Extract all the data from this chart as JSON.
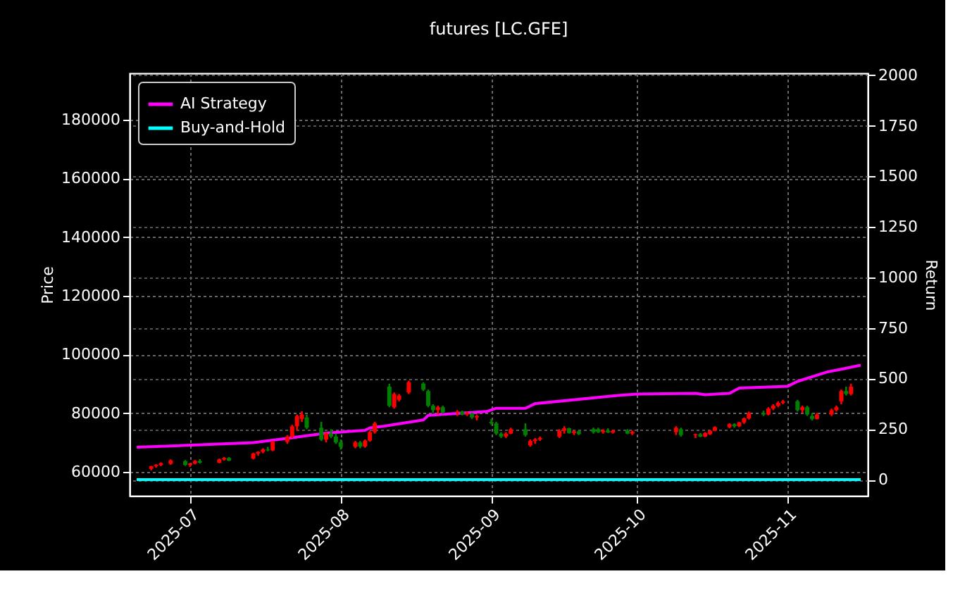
{
  "chart_data": {
    "type": "candlestick",
    "title": "futures [LC.GFE]",
    "ylabel": "Price",
    "y2label": "Return",
    "x": [
      "2025-06-23",
      "2025-06-24",
      "2025-06-25",
      "2025-06-27",
      "2025-06-30",
      "2025-07-01",
      "2025-07-02",
      "2025-07-03",
      "2025-07-07",
      "2025-07-08",
      "2025-07-09",
      "2025-07-14",
      "2025-07-15",
      "2025-07-16",
      "2025-07-17",
      "2025-07-18",
      "2025-07-21",
      "2025-07-22",
      "2025-07-23",
      "2025-07-24",
      "2025-07-25",
      "2025-07-28",
      "2025-07-29",
      "2025-07-30",
      "2025-07-31",
      "2025-08-01",
      "2025-08-04",
      "2025-08-05",
      "2025-08-06",
      "2025-08-07",
      "2025-08-08",
      "2025-08-11",
      "2025-08-12",
      "2025-08-13",
      "2025-08-15",
      "2025-08-18",
      "2025-08-19",
      "2025-08-20",
      "2025-08-21",
      "2025-08-22",
      "2025-08-25",
      "2025-08-26",
      "2025-08-27",
      "2025-08-28",
      "2025-08-29",
      "2025-09-01",
      "2025-09-02",
      "2025-09-03",
      "2025-09-04",
      "2025-09-05",
      "2025-09-08",
      "2025-09-09",
      "2025-09-10",
      "2025-09-11",
      "2025-09-15",
      "2025-09-16",
      "2025-09-17",
      "2025-09-18",
      "2025-09-19",
      "2025-09-22",
      "2025-09-23",
      "2025-09-24",
      "2025-09-25",
      "2025-09-26",
      "2025-09-29",
      "2025-09-30",
      "2025-10-09",
      "2025-10-10",
      "2025-10-13",
      "2025-10-14",
      "2025-10-15",
      "2025-10-16",
      "2025-10-17",
      "2025-10-20",
      "2025-10-21",
      "2025-10-22",
      "2025-10-23",
      "2025-10-24",
      "2025-10-27",
      "2025-10-28",
      "2025-10-29",
      "2025-10-30",
      "2025-10-31",
      "2025-11-03",
      "2025-11-04",
      "2025-11-05",
      "2025-11-06",
      "2025-11-07",
      "2025-11-10",
      "2025-11-11",
      "2025-11-12",
      "2025-11-13",
      "2025-11-14"
    ],
    "ohlc": [
      [
        61000,
        62000,
        60500,
        61900
      ],
      [
        61900,
        62600,
        61400,
        62300
      ],
      [
        62300,
        63200,
        61900,
        62900
      ],
      [
        62700,
        64200,
        62400,
        63900
      ],
      [
        63600,
        64000,
        62000,
        62300
      ],
      [
        62300,
        63000,
        61600,
        62800
      ],
      [
        62800,
        64000,
        62500,
        63700
      ],
      [
        63700,
        64300,
        62800,
        63100
      ],
      [
        63100,
        64500,
        62900,
        64200
      ],
      [
        64200,
        65000,
        63800,
        64700
      ],
      [
        64700,
        65000,
        63600,
        63800
      ],
      [
        64500,
        66500,
        64200,
        66200
      ],
      [
        66200,
        67000,
        65500,
        66800
      ],
      [
        66800,
        68000,
        66300,
        67600
      ],
      [
        67600,
        68500,
        67000,
        67300
      ],
      [
        67300,
        70500,
        67000,
        70200
      ],
      [
        70200,
        72500,
        69500,
        72000
      ],
      [
        72000,
        76000,
        71500,
        75500
      ],
      [
        75500,
        79500,
        74000,
        79000
      ],
      [
        78000,
        80600,
        77000,
        79500
      ],
      [
        78500,
        79500,
        74500,
        75000
      ],
      [
        75000,
        77000,
        70500,
        71000
      ],
      [
        71000,
        73500,
        70000,
        73000
      ],
      [
        73000,
        74500,
        71500,
        72000
      ],
      [
        72000,
        73000,
        69500,
        70000
      ],
      [
        70000,
        71000,
        67500,
        68500
      ],
      [
        68500,
        70500,
        68000,
        70000
      ],
      [
        70000,
        70500,
        68000,
        68600
      ],
      [
        68600,
        71000,
        68200,
        70600
      ],
      [
        70600,
        74000,
        70200,
        73500
      ],
      [
        73500,
        77000,
        73000,
        76500
      ],
      [
        89000,
        90000,
        82000,
        82500
      ],
      [
        82000,
        87000,
        81500,
        86500
      ],
      [
        84500,
        86500,
        84000,
        86000
      ],
      [
        87000,
        91000,
        86500,
        90500
      ],
      [
        90000,
        90500,
        87500,
        88000
      ],
      [
        87500,
        88000,
        82000,
        82500
      ],
      [
        82500,
        83000,
        80000,
        81000
      ],
      [
        81000,
        82500,
        79500,
        82000
      ],
      [
        82000,
        82500,
        79800,
        80200
      ],
      [
        80200,
        81000,
        79000,
        80500
      ],
      [
        80500,
        80800,
        79200,
        79500
      ],
      [
        79500,
        80500,
        79000,
        80000
      ],
      [
        79800,
        80200,
        78000,
        78500
      ],
      [
        78500,
        79500,
        77500,
        79000
      ],
      [
        77000,
        78000,
        76000,
        76500
      ],
      [
        76500,
        77000,
        72500,
        73000
      ],
      [
        73000,
        73500,
        71500,
        72000
      ],
      [
        72000,
        73500,
        71500,
        73000
      ],
      [
        73000,
        75000,
        72800,
        74500
      ],
      [
        74500,
        76500,
        72000,
        72500
      ],
      [
        69000,
        71000,
        68500,
        70500
      ],
      [
        70500,
        71500,
        69500,
        71000
      ],
      [
        71000,
        72000,
        70500,
        71500
      ],
      [
        72000,
        74500,
        71500,
        74000
      ],
      [
        74000,
        75500,
        73000,
        74800
      ],
      [
        74800,
        75000,
        73000,
        73200
      ],
      [
        73200,
        74000,
        72500,
        73800
      ],
      [
        73800,
        74000,
        72500,
        72800
      ],
      [
        74500,
        75000,
        73000,
        73500
      ],
      [
        74500,
        75000,
        73200,
        73500
      ],
      [
        73500,
        74500,
        73000,
        74000
      ],
      [
        74000,
        74800,
        73200,
        73400
      ],
      [
        73400,
        74300,
        73000,
        74000
      ],
      [
        74000,
        74500,
        72800,
        73000
      ],
      [
        73000,
        74000,
        72500,
        73600
      ],
      [
        73500,
        75500,
        72500,
        75000
      ],
      [
        74500,
        75000,
        72000,
        72500
      ],
      [
        72500,
        73000,
        71500,
        72800
      ],
      [
        72800,
        73200,
        71800,
        72000
      ],
      [
        72000,
        73500,
        71800,
        73200
      ],
      [
        72800,
        74200,
        72500,
        74000
      ],
      [
        74000,
        75500,
        73800,
        75200
      ],
      [
        75200,
        76500,
        74800,
        76200
      ],
      [
        76200,
        76500,
        75000,
        75500
      ],
      [
        75500,
        77000,
        75200,
        76800
      ],
      [
        76800,
        78500,
        76300,
        78200
      ],
      [
        78200,
        80500,
        77800,
        80000
      ],
      [
        80000,
        80800,
        79000,
        79500
      ],
      [
        79500,
        82000,
        79200,
        81500
      ],
      [
        81500,
        83000,
        81000,
        82500
      ],
      [
        82500,
        84000,
        82000,
        83500
      ],
      [
        83500,
        84500,
        83000,
        84000
      ],
      [
        84000,
        84500,
        80500,
        81000
      ],
      [
        81000,
        82500,
        80000,
        82000
      ],
      [
        82000,
        82500,
        79000,
        79500
      ],
      [
        79000,
        80000,
        77500,
        78000
      ],
      [
        78000,
        80000,
        77800,
        79500
      ],
      [
        79500,
        81500,
        79000,
        81000
      ],
      [
        81000,
        82500,
        80500,
        82000
      ],
      [
        84000,
        88000,
        83000,
        87500
      ],
      [
        87500,
        89000,
        86000,
        86500
      ],
      [
        86500,
        90000,
        86000,
        89000
      ]
    ],
    "colors": [
      "#ff0000",
      "#ff0000",
      "#ff0000",
      "#ff0000",
      "#008000",
      "#ff0000",
      "#ff0000",
      "#008000",
      "#ff0000",
      "#ff0000",
      "#008000",
      "#ff0000",
      "#ff0000",
      "#ff0000",
      "#008000",
      "#ff0000",
      "#ff0000",
      "#ff0000",
      "#ff0000",
      "#ff0000",
      "#008000",
      "#008000",
      "#ff0000",
      "#008000",
      "#008000",
      "#008000",
      "#ff0000",
      "#008000",
      "#ff0000",
      "#ff0000",
      "#ff0000",
      "#008000",
      "#ff0000",
      "#ff0000",
      "#ff0000",
      "#008000",
      "#008000",
      "#008000",
      "#ff0000",
      "#008000",
      "#ff0000",
      "#008000",
      "#ff0000",
      "#008000",
      "#ff0000",
      "#008000",
      "#008000",
      "#008000",
      "#ff0000",
      "#ff0000",
      "#008000",
      "#ff0000",
      "#ff0000",
      "#ff0000",
      "#ff0000",
      "#ff0000",
      "#008000",
      "#ff0000",
      "#008000",
      "#008000",
      "#008000",
      "#ff0000",
      "#008000",
      "#ff0000",
      "#008000",
      "#ff0000",
      "#ff0000",
      "#008000",
      "#ff0000",
      "#008000",
      "#ff0000",
      "#ff0000",
      "#ff0000",
      "#ff0000",
      "#008000",
      "#ff0000",
      "#ff0000",
      "#ff0000",
      "#008000",
      "#ff0000",
      "#ff0000",
      "#ff0000",
      "#ff0000",
      "#008000",
      "#ff0000",
      "#008000",
      "#008000",
      "#ff0000",
      "#ff0000",
      "#ff0000",
      "#ff0000",
      "#008000",
      "#ff0000"
    ],
    "series": [
      {
        "name": "AI Strategy",
        "type": "line",
        "axis": "y2",
        "color": "#ff00ff",
        "x": [
          "2025-06-20",
          "2025-07-14",
          "2025-07-22",
          "2025-07-29",
          "2025-08-06",
          "2025-08-07",
          "2025-08-10",
          "2025-08-18",
          "2025-08-19",
          "2025-08-31",
          "2025-09-02",
          "2025-09-08",
          "2025-09-10",
          "2025-09-27",
          "2025-10-01",
          "2025-10-13",
          "2025-10-15",
          "2025-10-20",
          "2025-10-22",
          "2025-11-01",
          "2025-11-03",
          "2025-11-09",
          "2025-11-12",
          "2025-11-16"
        ],
        "values": [
          160,
          183,
          207,
          230,
          244,
          256,
          265,
          295,
          318,
          337,
          353,
          353,
          376,
          416,
          423,
          427,
          420,
          427,
          453,
          462,
          486,
          532,
          546,
          566
        ]
      },
      {
        "name": "Buy-and-Hold",
        "type": "line",
        "axis": "y2",
        "color": "#00ffff",
        "x": [
          "2025-06-20",
          "2025-11-16"
        ],
        "values": [
          0,
          0
        ]
      }
    ],
    "xlim": [
      "2025-06-20",
      "2025-11-16"
    ],
    "xticks": [
      {
        "value": "2025-07-01",
        "label": "2025-07"
      },
      {
        "value": "2025-08-01",
        "label": "2025-08"
      },
      {
        "value": "2025-09-01",
        "label": "2025-09"
      },
      {
        "value": "2025-10-01",
        "label": "2025-10"
      },
      {
        "value": "2025-11-01",
        "label": "2025-11"
      }
    ],
    "ylim": [
      51800,
      195800
    ],
    "yticks": [
      60000,
      80000,
      100000,
      120000,
      140000,
      160000,
      180000
    ],
    "y2lim": [
      -80,
      2010
    ],
    "y2ticks": [
      0,
      250,
      500,
      750,
      1000,
      1250,
      1500,
      1750,
      2000
    ],
    "grid": true,
    "legend": "top left"
  }
}
